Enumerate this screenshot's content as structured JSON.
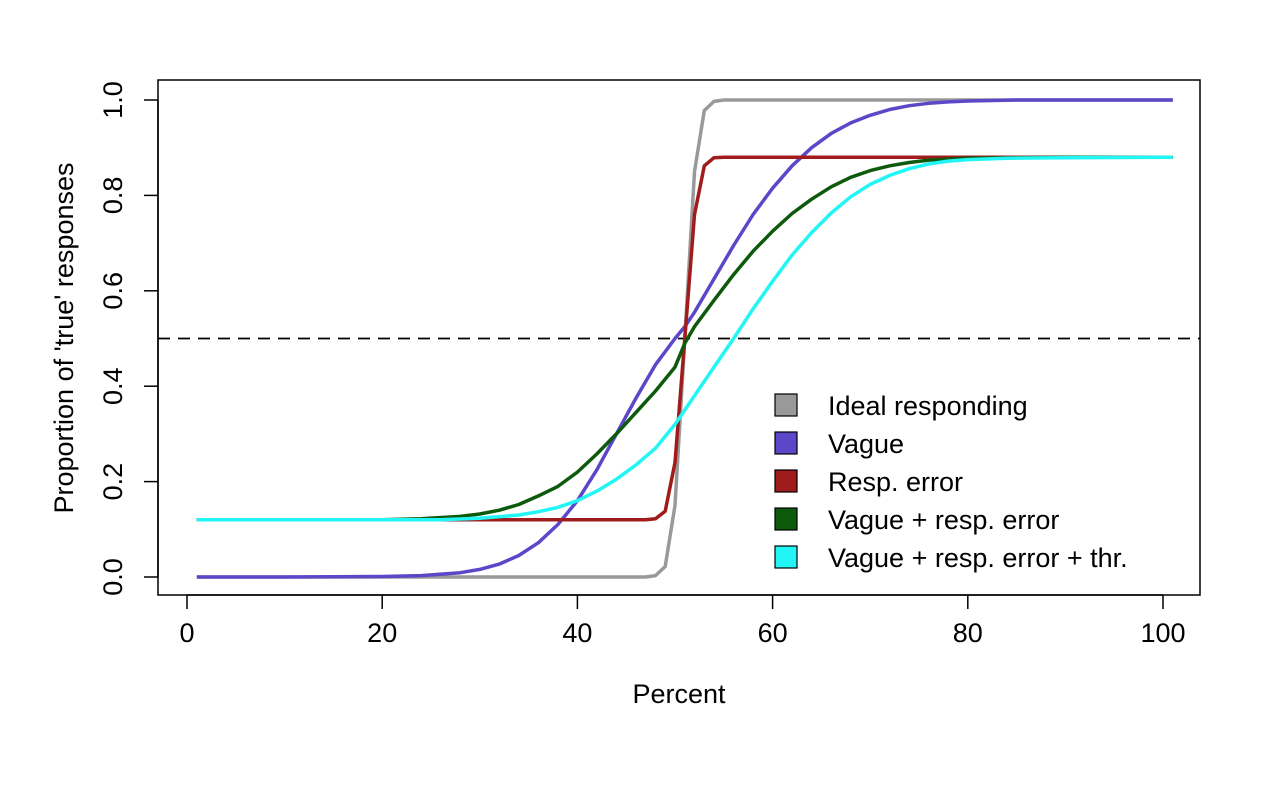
{
  "chart_data": {
    "type": "line",
    "title": "",
    "xlabel": "Percent",
    "ylabel": "Proportion of 'true' responses",
    "xlim": [
      0,
      100
    ],
    "ylim": [
      0,
      1
    ],
    "x_ticks": [
      "0",
      "20",
      "40",
      "60",
      "80",
      "100"
    ],
    "y_ticks": [
      "0.0",
      "0.2",
      "0.4",
      "0.6",
      "0.8",
      "1.0"
    ],
    "reference_line": {
      "y": 0.5,
      "style": "dashed"
    },
    "legend_position": "bottom-right",
    "grid": false,
    "series": [
      {
        "name": "Ideal responding",
        "color": "#999999",
        "x": [
          1,
          47,
          48,
          49,
          50,
          51,
          52,
          53,
          54,
          55,
          101
        ],
        "y": [
          0,
          0,
          0.003,
          0.022,
          0.15,
          0.5,
          0.85,
          0.978,
          0.997,
          1,
          1
        ]
      },
      {
        "name": "Vague",
        "color": "#5b47c8",
        "x": [
          1,
          10,
          20,
          24,
          28,
          30,
          32,
          34,
          36,
          38,
          40,
          42,
          44,
          46,
          48,
          50,
          51,
          52,
          54,
          56,
          58,
          60,
          62,
          64,
          66,
          68,
          70,
          72,
          74,
          76,
          78,
          80,
          85,
          90,
          101
        ],
        "y": [
          0,
          0,
          0.001,
          0.003,
          0.009,
          0.016,
          0.027,
          0.045,
          0.072,
          0.11,
          0.16,
          0.225,
          0.3,
          0.375,
          0.445,
          0.5,
          0.525,
          0.555,
          0.625,
          0.695,
          0.76,
          0.815,
          0.862,
          0.9,
          0.93,
          0.952,
          0.968,
          0.98,
          0.988,
          0.993,
          0.996,
          0.998,
          1,
          1,
          1
        ]
      },
      {
        "name": "Resp. error",
        "color": "#a01c1c",
        "x": [
          1,
          47,
          48,
          49,
          50,
          51,
          52,
          53,
          54,
          55,
          60,
          70,
          80,
          101
        ],
        "y": [
          0.12,
          0.12,
          0.122,
          0.138,
          0.24,
          0.5,
          0.76,
          0.862,
          0.879,
          0.88,
          0.88,
          0.88,
          0.88,
          0.88
        ]
      },
      {
        "name": "Vague + resp. error",
        "color": "#0d5a0d",
        "x": [
          1,
          10,
          20,
          24,
          28,
          30,
          32,
          34,
          36,
          38,
          40,
          42,
          44,
          46,
          48,
          50,
          51,
          52,
          54,
          56,
          58,
          60,
          62,
          64,
          66,
          68,
          70,
          72,
          74,
          76,
          78,
          80,
          85,
          90,
          101
        ],
        "y": [
          0.12,
          0.12,
          0.12,
          0.122,
          0.127,
          0.132,
          0.14,
          0.152,
          0.17,
          0.19,
          0.22,
          0.258,
          0.3,
          0.345,
          0.39,
          0.44,
          0.49,
          0.525,
          0.58,
          0.634,
          0.683,
          0.725,
          0.762,
          0.792,
          0.818,
          0.838,
          0.852,
          0.862,
          0.869,
          0.874,
          0.876,
          0.878,
          0.879,
          0.88,
          0.88
        ]
      },
      {
        "name": "Vague + resp. error + thr.",
        "color": "#22f5f5",
        "x": [
          1,
          10,
          20,
          26,
          30,
          34,
          36,
          38,
          40,
          42,
          44,
          46,
          48,
          50,
          52,
          54,
          56,
          58,
          60,
          62,
          64,
          66,
          68,
          70,
          72,
          74,
          76,
          78,
          80,
          84,
          90,
          101
        ],
        "y": [
          0.12,
          0.12,
          0.12,
          0.12,
          0.123,
          0.13,
          0.137,
          0.146,
          0.16,
          0.18,
          0.205,
          0.235,
          0.27,
          0.32,
          0.38,
          0.44,
          0.5,
          0.562,
          0.62,
          0.675,
          0.722,
          0.763,
          0.797,
          0.823,
          0.842,
          0.856,
          0.866,
          0.872,
          0.875,
          0.878,
          0.879,
          0.88
        ]
      }
    ]
  }
}
